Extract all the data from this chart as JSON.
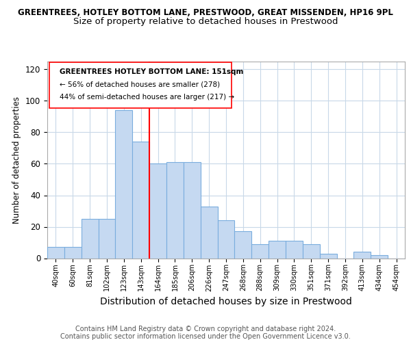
{
  "title1": "GREENTREES, HOTLEY BOTTOM LANE, PRESTWOOD, GREAT MISSENDEN, HP16 9PL",
  "title2": "Size of property relative to detached houses in Prestwood",
  "xlabel": "Distribution of detached houses by size in Prestwood",
  "ylabel": "Number of detached properties",
  "categories": [
    "40sqm",
    "60sqm",
    "81sqm",
    "102sqm",
    "123sqm",
    "143sqm",
    "164sqm",
    "185sqm",
    "206sqm",
    "226sqm",
    "247sqm",
    "268sqm",
    "288sqm",
    "309sqm",
    "330sqm",
    "351sqm",
    "371sqm",
    "392sqm",
    "413sqm",
    "434sqm",
    "454sqm"
  ],
  "values": [
    7,
    7,
    25,
    25,
    94,
    74,
    60,
    61,
    61,
    33,
    24,
    17,
    9,
    11,
    11,
    9,
    3,
    0,
    4,
    2,
    0
  ],
  "bar_color": "#c5d9f1",
  "bar_edge_color": "#7aadde",
  "red_line_x": 5.5,
  "red_line_label": "GREENTREES HOTLEY BOTTOM LANE: 151sqm",
  "annotation_line2": "← 56% of detached houses are smaller (278)",
  "annotation_line3": "44% of semi-detached houses are larger (217) →",
  "footer1": "Contains HM Land Registry data © Crown copyright and database right 2024.",
  "footer2": "Contains public sector information licensed under the Open Government Licence v3.0.",
  "ylim": [
    0,
    125
  ],
  "yticks": [
    0,
    20,
    40,
    60,
    80,
    100,
    120
  ],
  "title1_fontsize": 8.5,
  "title2_fontsize": 9.5,
  "xlabel_fontsize": 10,
  "ylabel_fontsize": 8.5,
  "footer_fontsize": 7,
  "background_color": "#ffffff"
}
